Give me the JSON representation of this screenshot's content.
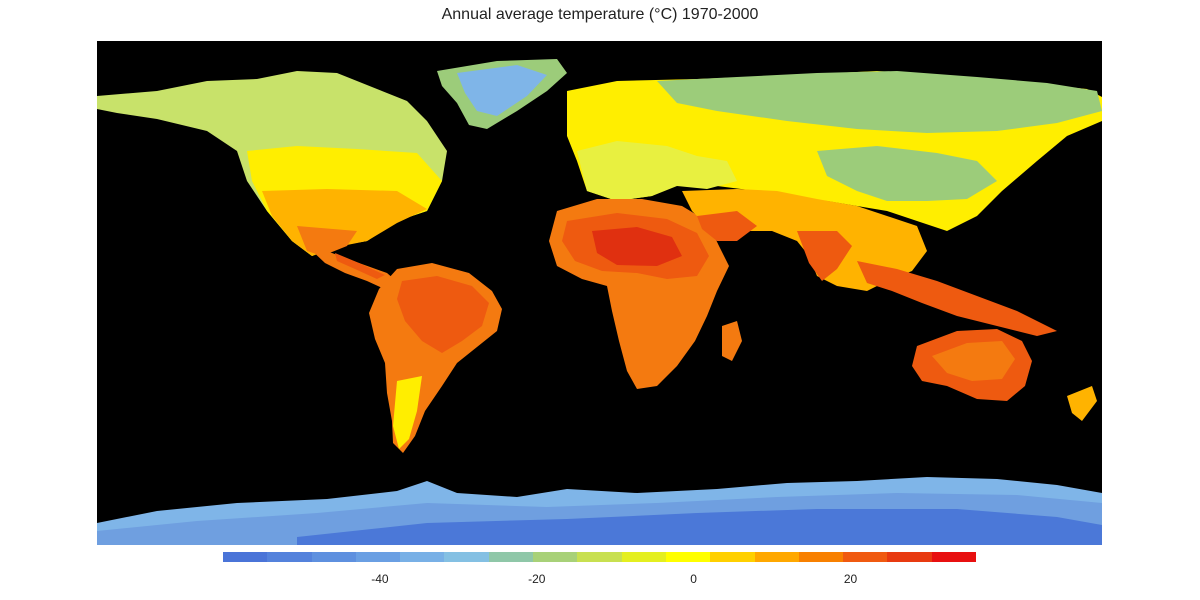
{
  "title": "Annual average temperature (°C) 1970-2000",
  "map": {
    "background": "#000000",
    "colors": {
      "ice_deep": "#4b78d8",
      "ice": "#6f9fe0",
      "ice_light": "#7fb5e8",
      "tundra": "#9ccc7a",
      "boreal": "#c8e26a",
      "temperate_cool": "#e8f040",
      "temperate": "#ffee00",
      "warm": "#ffb300",
      "hot": "#f47a10",
      "very_hot": "#ee5a10",
      "extreme": "#e03010"
    }
  },
  "legend": {
    "colors": [
      "#4a74d8",
      "#5482dc",
      "#5e90df",
      "#6a9fe3",
      "#78b0e6",
      "#84c0e3",
      "#8fc7a8",
      "#a8d178",
      "#c8e050",
      "#e4ef20",
      "#ffff00",
      "#ffd000",
      "#ffa800",
      "#f88000",
      "#f05a10",
      "#e83a10",
      "#e81010"
    ],
    "min": -60,
    "max": 36,
    "ticks": [
      {
        "label": "-40",
        "value": -40
      },
      {
        "label": "-20",
        "value": -20
      },
      {
        "label": "0",
        "value": 0
      },
      {
        "label": "20",
        "value": 20
      }
    ]
  }
}
